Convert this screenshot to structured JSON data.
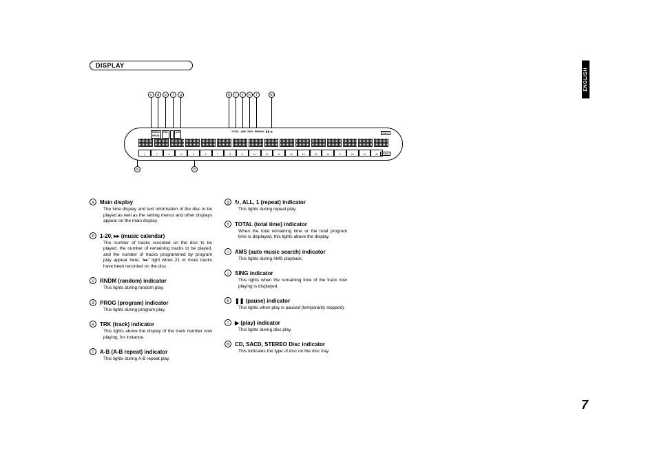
{
  "section_title": "DISPLAY",
  "language_tab": "ENGLISH",
  "page_number": "7",
  "display_panel": {
    "top_left_indicators": [
      {
        "top": "RNDM",
        "bot": "PROG"
      },
      {
        "top": "TRK",
        "bot": ""
      },
      {
        "top": "",
        "bot": ""
      },
      {
        "top": "A-B",
        "bot": ""
      }
    ],
    "top_right_indicators": [
      "TOTAL",
      "AMS",
      "SING",
      "REMAIN",
      "❚❚",
      "▶"
    ],
    "sacd": "SACD",
    "stereo": "STEREO",
    "calendar_numbers": [
      "1",
      "2",
      "3",
      "4",
      "5",
      "6",
      "7",
      "8",
      "9",
      "10",
      "11",
      "12",
      "13",
      "14",
      "15",
      "16",
      "17",
      "18",
      "19",
      "20"
    ]
  },
  "callouts": {
    "top": [
      "c",
      "d",
      "e",
      "f",
      "g",
      "h",
      "i",
      "j",
      "k",
      "l",
      "m"
    ],
    "bottom": [
      "a",
      "b"
    ]
  },
  "left_items": [
    {
      "marker": "a",
      "title": "Main display",
      "desc": "The time display and text information of the disc to be played as well as the setting menus and other displays appear on the main display."
    },
    {
      "marker": "b",
      "title": "1-20, ▸▸ (music calendar)",
      "desc": "The number of tracks recorded on the disc to be played, the number of remaining tracks to be played, and the number of tracks programmed by program play appear here. \"▸▸\" light when 21 or more tracks have been recorded on the disc."
    },
    {
      "marker": "c",
      "title": "RNDM (random) indicator",
      "desc": "This lights during random play."
    },
    {
      "marker": "d",
      "title": "PROG (program) indicator",
      "desc": "This lights during program play."
    },
    {
      "marker": "e",
      "title": "TRK (track) indicator",
      "desc": "This lights above the display of the track number now playing, for instance."
    },
    {
      "marker": "f",
      "title": "A-B (A-B repeat) indicator",
      "desc": "This lights during A-B repeat play."
    }
  ],
  "right_items": [
    {
      "marker": "g",
      "title": "↻, ALL, 1 (repeat) indicator",
      "desc": "This lights during repeat play."
    },
    {
      "marker": "h",
      "title": "TOTAL (total time) indicator",
      "desc": "When the total remaining time or the total program time is displayed, this lights above the display."
    },
    {
      "marker": "i",
      "title": "AMS (auto music search) indicator",
      "desc": "This lights during AMS playback."
    },
    {
      "marker": "j",
      "title": "SING indicator",
      "desc": "This lights when the remaining time of the track now playing is displayed."
    },
    {
      "marker": "k",
      "title": "❚❚ (pause) indicator",
      "desc": "This lights when play is paused (temporarily stopped)."
    },
    {
      "marker": "l",
      "title": "▶ (play) indicator",
      "desc": "This lights during disc play."
    },
    {
      "marker": "m",
      "title": "CD, SACD, STEREO Disc indicator",
      "desc": "This indicates the type of disc on the disc tray."
    }
  ]
}
